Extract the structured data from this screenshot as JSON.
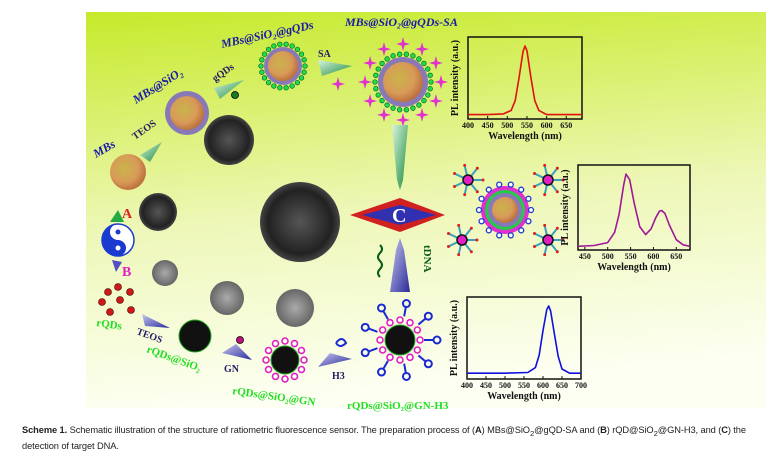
{
  "labels": {
    "mbs": "MBs",
    "teos_a": "TEOS",
    "mbs_sio2": "MBs@SiO₂",
    "gqds": "gQDs",
    "mbs_sio2_gqds": "MBs@SiO₂@gQDs",
    "sa": "SA",
    "mbs_sio2_gqds_sa": "MBs@SiO₂@gQDs-SA",
    "route_a": "A",
    "route_b": "B",
    "route_c": "C",
    "rqds": "rQDs",
    "teos_b": "TEOS",
    "rqds_sio2": "rQDs@SiO₂",
    "gn": "GN",
    "rqds_sio2_gn": "rQDs@SiO₂@GN",
    "h3": "H3",
    "rqds_sio2_gn_h3": "rQDs@SiO₂@GN-H3",
    "tdna": "tDNA"
  },
  "colors": {
    "background_top": "#c6ea2a",
    "background_bottom": "#fdfff2",
    "green_emission": "#e01010",
    "dual_emission": "#a0189a",
    "red_emission": "#1010e0"
  },
  "chart_data": [
    {
      "type": "line",
      "xlabel": "Wavelength (nm)",
      "ylabel": "PL intensity (a.u.)",
      "xlim": [
        400,
        690
      ],
      "xticks": [
        400,
        450,
        500,
        550,
        600,
        650
      ],
      "series": [
        {
          "color": "#e01010",
          "x": [
            400,
            450,
            490,
            510,
            520,
            530,
            540,
            545,
            550,
            560,
            570,
            580,
            600,
            650,
            690
          ],
          "y": [
            0.02,
            0.02,
            0.03,
            0.08,
            0.22,
            0.55,
            0.92,
            1.0,
            0.93,
            0.55,
            0.22,
            0.08,
            0.02,
            0.02,
            0.02
          ]
        }
      ]
    },
    {
      "type": "line",
      "xlabel": "Wavelength (nm)",
      "ylabel": "PL intensity (a.u.)",
      "xlim": [
        435,
        680
      ],
      "xticks": [
        450,
        500,
        550,
        600,
        650
      ],
      "series": [
        {
          "color": "#a0189a",
          "x": [
            435,
            470,
            500,
            515,
            525,
            535,
            540,
            548,
            558,
            570,
            583,
            595,
            605,
            613,
            618,
            625,
            635,
            650,
            665,
            680
          ],
          "y": [
            0.01,
            0.02,
            0.06,
            0.2,
            0.45,
            0.85,
            1.0,
            0.92,
            0.6,
            0.28,
            0.17,
            0.25,
            0.4,
            0.49,
            0.5,
            0.46,
            0.3,
            0.1,
            0.03,
            0.01
          ]
        }
      ]
    },
    {
      "type": "line",
      "xlabel": "Wavelength (nm)",
      "ylabel": "PL intensity (a.u.)",
      "xlim": [
        400,
        700
      ],
      "xticks": [
        400,
        450,
        500,
        550,
        600,
        650,
        700
      ],
      "series": [
        {
          "color": "#1010e0",
          "x": [
            400,
            500,
            560,
            580,
            590,
            600,
            610,
            615,
            620,
            630,
            640,
            650,
            670,
            700
          ],
          "y": [
            0.04,
            0.04,
            0.05,
            0.12,
            0.3,
            0.65,
            0.95,
            1.0,
            0.93,
            0.6,
            0.28,
            0.1,
            0.04,
            0.04
          ]
        }
      ]
    }
  ],
  "caption": {
    "label": "Scheme 1.",
    "part1": " Schematic illustration of the structure of ratiometric fluorescence sensor. The preparation process of (",
    "a": "A",
    "part2": ") MBs@SiO",
    "sub1": "2",
    "part3": "@gQD-SA and (",
    "b": "B",
    "part4": ") rQD@SiO",
    "sub2": "2",
    "part5": "@GN-H3, and (",
    "c": "C",
    "part6": ") the detection of target DNA."
  }
}
